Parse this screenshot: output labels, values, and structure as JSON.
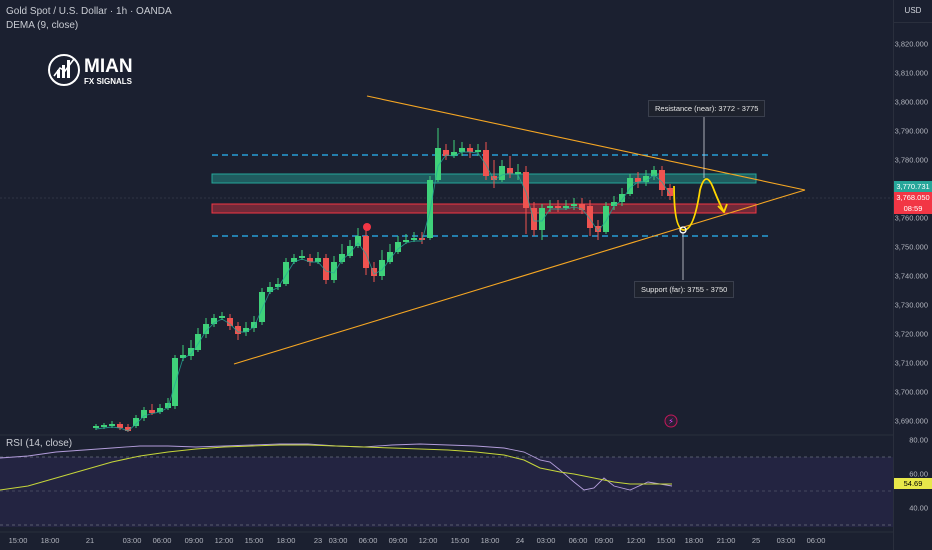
{
  "header": {
    "symbol_line": "Gold Spot / U.S. Dollar · 1h · OANDA",
    "indicator_line": "DEMA (9, close)",
    "currency": "USD"
  },
  "logo": {
    "brand": "MIAN",
    "sub": "FX SIGNALS"
  },
  "price_axis": {
    "labels": [
      "3,820.000",
      "3,810.000",
      "3,800.000",
      "3,790.000",
      "3,780.000",
      "3,760.000",
      "3,750.000",
      "3,740.000",
      "3,730.000",
      "3,720.000",
      "3,710.000",
      "3,700.000",
      "3,690.000"
    ],
    "price_badge_green": "3,770.731",
    "price_badge_red": "3,768.050",
    "countdown": "08:59"
  },
  "rsi_axis": {
    "labels": [
      "80.00",
      "60.00",
      "40.00"
    ],
    "value": "54.69"
  },
  "rsi_label": "RSI (14, close)",
  "time_axis": [
    "15:00",
    "18:00",
    "21",
    "03:00",
    "06:00",
    "09:00",
    "12:00",
    "15:00",
    "18:00",
    "23",
    "03:00",
    "06:00",
    "09:00",
    "12:00",
    "15:00",
    "18:00",
    "24",
    "03:00",
    "06:00",
    "09:00",
    "12:00",
    "15:00",
    "18:00",
    "21:00",
    "25",
    "03:00",
    "06:00"
  ],
  "annotations": {
    "resistance": "Resistance (near): 3772 - 3775",
    "support": "Support (far): 3755 - 3750"
  },
  "colors": {
    "bull": "#26a69a",
    "bull_bright": "#3fd17a",
    "bear": "#ef5350",
    "trendline": "#f5a623",
    "zone_green": "#26a69a",
    "zone_red": "#f23645",
    "dash": "#29b6f6",
    "arrow": "#ffd600",
    "rsi": "#b39ddb",
    "rsi_ma": "#c6d63a"
  }
}
